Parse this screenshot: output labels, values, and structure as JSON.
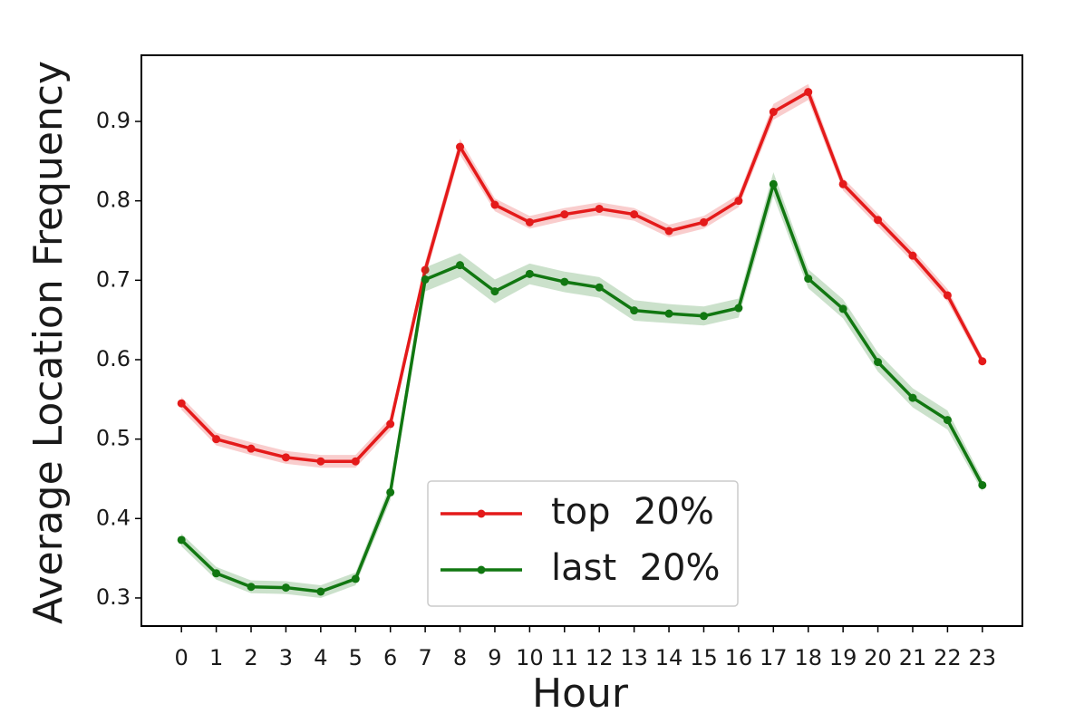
{
  "chart_data": {
    "type": "line",
    "x_label": "Hour",
    "y_label": "Average  Location  Frequency",
    "x": [
      0,
      1,
      2,
      3,
      4,
      5,
      6,
      7,
      8,
      9,
      10,
      11,
      12,
      13,
      14,
      15,
      16,
      17,
      18,
      19,
      20,
      21,
      22,
      23
    ],
    "series": [
      {
        "name": "top  20%",
        "color": "#e41a1a",
        "values": [
          0.545,
          0.5,
          0.488,
          0.477,
          0.472,
          0.472,
          0.519,
          0.713,
          0.868,
          0.795,
          0.773,
          0.783,
          0.79,
          0.783,
          0.762,
          0.773,
          0.8,
          0.912,
          0.937,
          0.821,
          0.776,
          0.731,
          0.681,
          0.598
        ],
        "errors": [
          0.008,
          0.008,
          0.008,
          0.008,
          0.008,
          0.008,
          0.008,
          0.01,
          0.01,
          0.008,
          0.008,
          0.008,
          0.008,
          0.008,
          0.008,
          0.008,
          0.008,
          0.01,
          0.01,
          0.008,
          0.008,
          0.008,
          0.008,
          0.006
        ]
      },
      {
        "name": "last  20%",
        "color": "#117711",
        "values": [
          0.373,
          0.331,
          0.314,
          0.313,
          0.308,
          0.324,
          0.433,
          0.701,
          0.719,
          0.686,
          0.708,
          0.698,
          0.691,
          0.662,
          0.658,
          0.655,
          0.665,
          0.821,
          0.702,
          0.664,
          0.597,
          0.552,
          0.524,
          0.442
        ],
        "errors": [
          0.008,
          0.008,
          0.008,
          0.008,
          0.008,
          0.008,
          0.01,
          0.015,
          0.015,
          0.015,
          0.013,
          0.013,
          0.013,
          0.013,
          0.012,
          0.012,
          0.012,
          0.015,
          0.012,
          0.012,
          0.012,
          0.012,
          0.012,
          0.008
        ]
      }
    ],
    "xlim": [
      -1.15,
      24.15
    ],
    "ylim": [
      0.2646,
      0.9833
    ],
    "xticks": [
      0,
      1,
      2,
      3,
      4,
      5,
      6,
      7,
      8,
      9,
      10,
      11,
      12,
      13,
      14,
      15,
      16,
      17,
      18,
      19,
      20,
      21,
      22,
      23
    ],
    "yticks": [
      0.3,
      0.4,
      0.5,
      0.6,
      0.7,
      0.8,
      0.9
    ],
    "legend": "lower center"
  }
}
